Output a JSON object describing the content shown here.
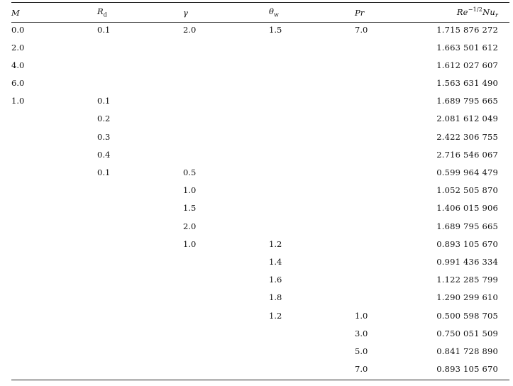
{
  "headers": {
    "M": "M",
    "Rd_main": "R",
    "Rd_sub": "d",
    "gamma": "γ",
    "theta_main": "θ",
    "theta_sub": "w",
    "Pr": "Pr",
    "Nu_re": "Re",
    "Nu_exp": "−1/2",
    "Nu_nu": "Nu",
    "Nu_sub": "r"
  },
  "rows": [
    {
      "M": "0.0",
      "Rd": "0.1",
      "gamma": "2.0",
      "theta": "1.5",
      "Pr": "7.0",
      "Nu": "1.715 876 272"
    },
    {
      "M": "2.0",
      "Rd": "",
      "gamma": "",
      "theta": "",
      "Pr": "",
      "Nu": "1.663 501 612"
    },
    {
      "M": "4.0",
      "Rd": "",
      "gamma": "",
      "theta": "",
      "Pr": "",
      "Nu": "1.612 027 607"
    },
    {
      "M": "6.0",
      "Rd": "",
      "gamma": "",
      "theta": "",
      "Pr": "",
      "Nu": "1.563 631 490"
    },
    {
      "M": "1.0",
      "Rd": "0.1",
      "gamma": "",
      "theta": "",
      "Pr": "",
      "Nu": "1.689 795 665"
    },
    {
      "M": "",
      "Rd": "0.2",
      "gamma": "",
      "theta": "",
      "Pr": "",
      "Nu": "2.081 612 049"
    },
    {
      "M": "",
      "Rd": "0.3",
      "gamma": "",
      "theta": "",
      "Pr": "",
      "Nu": "2.422 306 755"
    },
    {
      "M": "",
      "Rd": "0.4",
      "gamma": "",
      "theta": "",
      "Pr": "",
      "Nu": "2.716 546 067"
    },
    {
      "M": "",
      "Rd": "0.1",
      "gamma": "0.5",
      "theta": "",
      "Pr": "",
      "Nu": "0.599 964 479"
    },
    {
      "M": "",
      "Rd": "",
      "gamma": "1.0",
      "theta": "",
      "Pr": "",
      "Nu": "1.052 505 870"
    },
    {
      "M": "",
      "Rd": "",
      "gamma": "1.5",
      "theta": "",
      "Pr": "",
      "Nu": "1.406 015 906"
    },
    {
      "M": "",
      "Rd": "",
      "gamma": "2.0",
      "theta": "",
      "Pr": "",
      "Nu": "1.689 795 665"
    },
    {
      "M": "",
      "Rd": "",
      "gamma": "1.0",
      "theta": "1.2",
      "Pr": "",
      "Nu": "0.893 105 670"
    },
    {
      "M": "",
      "Rd": "",
      "gamma": "",
      "theta": "1.4",
      "Pr": "",
      "Nu": "0.991 436 334"
    },
    {
      "M": "",
      "Rd": "",
      "gamma": "",
      "theta": "1.6",
      "Pr": "",
      "Nu": "1.122 285 799"
    },
    {
      "M": "",
      "Rd": "",
      "gamma": "",
      "theta": "1.8",
      "Pr": "",
      "Nu": "1.290 299 610"
    },
    {
      "M": "",
      "Rd": "",
      "gamma": "",
      "theta": "1.2",
      "Pr": "1.0",
      "Nu": "0.500 598 705"
    },
    {
      "M": "",
      "Rd": "",
      "gamma": "",
      "theta": "",
      "Pr": "3.0",
      "Nu": "0.750 051 509"
    },
    {
      "M": "",
      "Rd": "",
      "gamma": "",
      "theta": "",
      "Pr": "5.0",
      "Nu": "0.841 728 890"
    },
    {
      "M": "",
      "Rd": "",
      "gamma": "",
      "theta": "",
      "Pr": "7.0",
      "Nu": "0.893 105 670"
    }
  ]
}
